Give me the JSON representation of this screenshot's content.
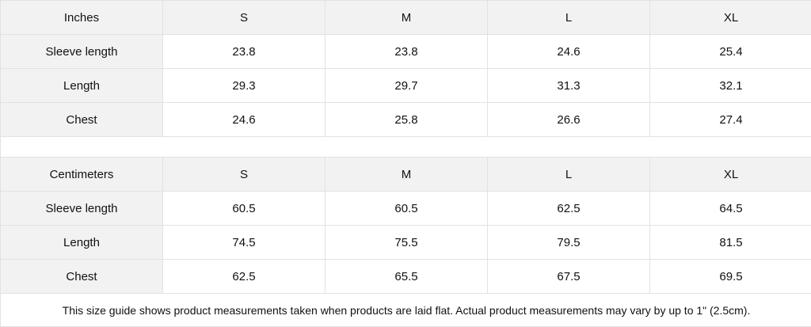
{
  "tables": [
    {
      "header": [
        "Inches",
        "S",
        "M",
        "L",
        "XL"
      ],
      "rows": [
        [
          "Sleeve length",
          "23.8",
          "23.8",
          "24.6",
          "25.4"
        ],
        [
          "Length",
          "29.3",
          "29.7",
          "31.3",
          "32.1"
        ],
        [
          "Chest",
          "24.6",
          "25.8",
          "26.6",
          "27.4"
        ]
      ]
    },
    {
      "header": [
        "Centimeters",
        "S",
        "M",
        "L",
        "XL"
      ],
      "rows": [
        [
          "Sleeve length",
          "60.5",
          "60.5",
          "62.5",
          "64.5"
        ],
        [
          "Length",
          "74.5",
          "75.5",
          "79.5",
          "81.5"
        ],
        [
          "Chest",
          "62.5",
          "65.5",
          "67.5",
          "69.5"
        ]
      ]
    }
  ],
  "note": "This size guide shows product measurements taken when products are laid flat.  Actual product measurements may vary by up to 1\" (2.5cm).",
  "colors": {
    "header_bg": "#f2f2f2",
    "border": "#e2e2e2",
    "cell_bg": "#ffffff"
  }
}
